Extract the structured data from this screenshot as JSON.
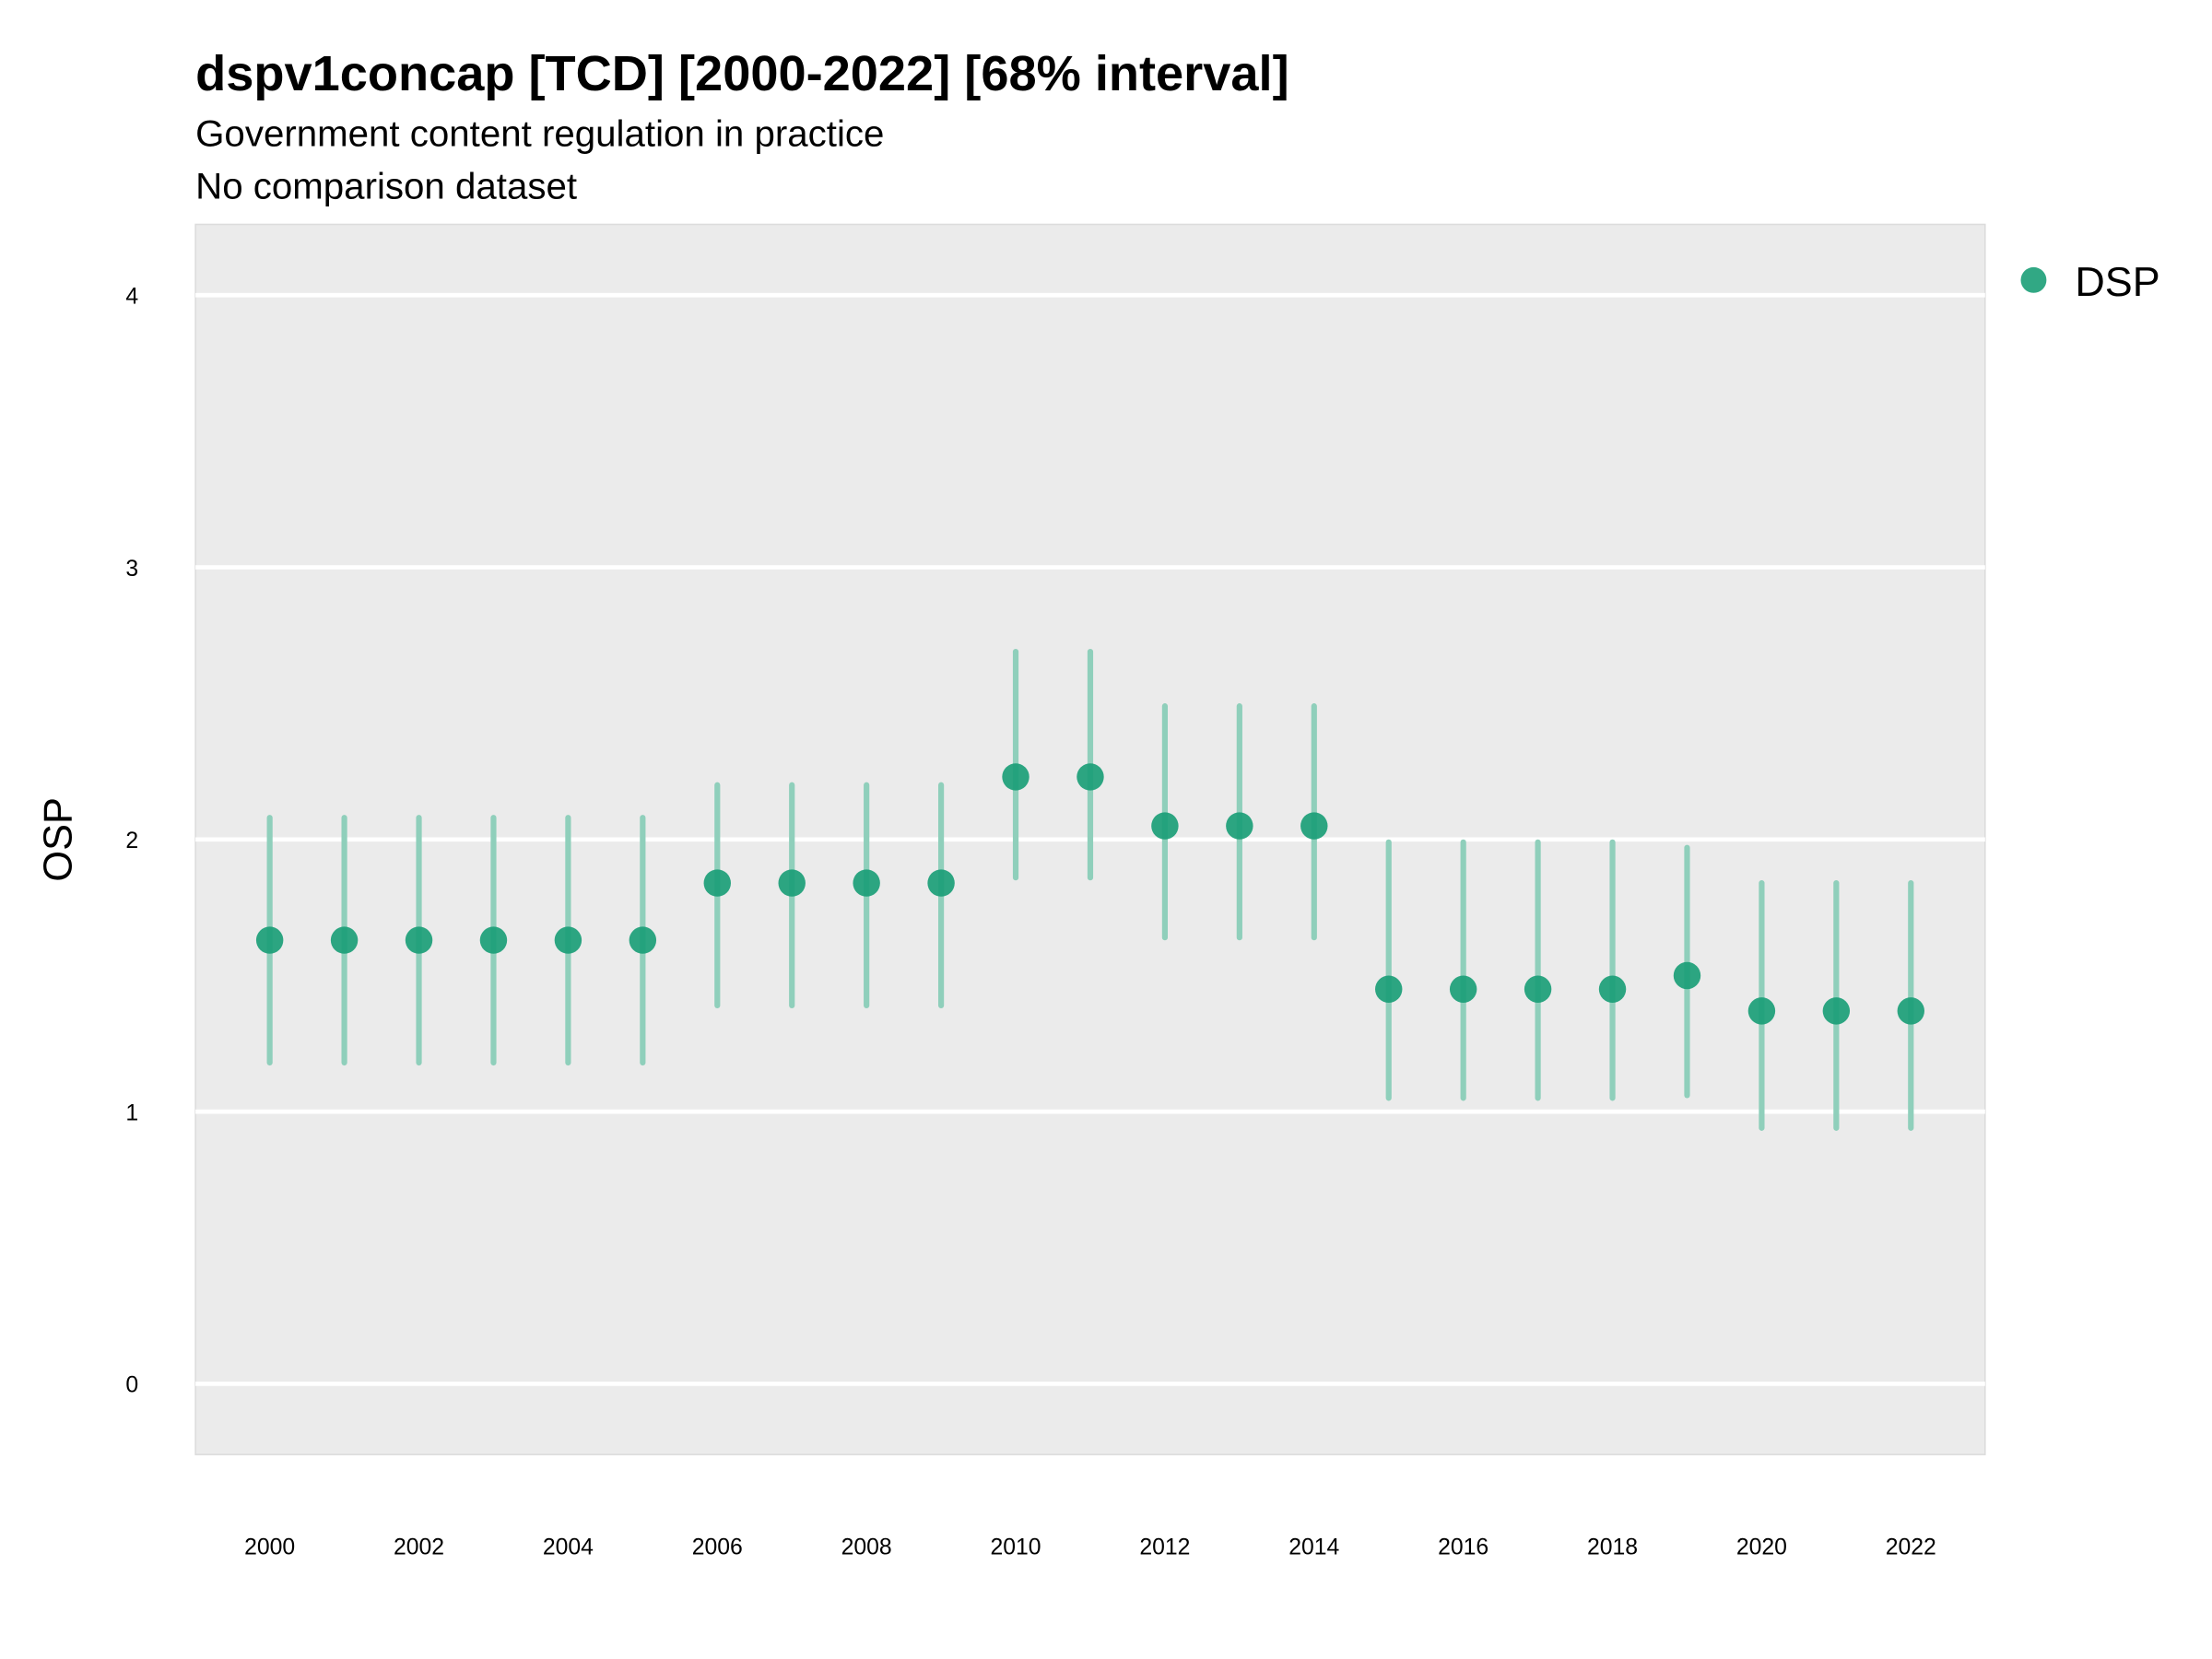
{
  "chart_data": {
    "type": "scatter",
    "title": "dspv1concap [TCD] [2000-2022] [68% interval]",
    "subtitle": "Government content regulation in practice",
    "subtitle2": "No comparison dataset",
    "xlabel": "",
    "ylabel": "OSP",
    "ylim": [
      -0.26,
      4.26
    ],
    "xlim": [
      1999,
      2023
    ],
    "grid": true,
    "legend_position": "right",
    "yticks": [
      "0",
      "1",
      "2",
      "3",
      "4"
    ],
    "xticks": [
      "2000",
      "2002",
      "2004",
      "2006",
      "2008",
      "2010",
      "2012",
      "2014",
      "2016",
      "2018",
      "2020",
      "2022"
    ],
    "colors": {
      "point": "#1b9e77",
      "interval": "#8fcfbb",
      "panel": "#ebebeb",
      "grid": "#ffffff"
    },
    "series": [
      {
        "name": "DSP",
        "x": [
          2000,
          2001,
          2002,
          2003,
          2004,
          2005,
          2006,
          2007,
          2008,
          2009,
          2010,
          2011,
          2012,
          2013,
          2014,
          2015,
          2016,
          2017,
          2018,
          2019,
          2020,
          2021,
          2022
        ],
        "y": [
          1.63,
          1.63,
          1.63,
          1.63,
          1.63,
          1.63,
          1.84,
          1.84,
          1.84,
          1.84,
          2.23,
          2.23,
          2.05,
          2.05,
          2.05,
          1.45,
          1.45,
          1.45,
          1.45,
          1.5,
          1.37,
          1.37,
          1.37
        ],
        "lower": [
          1.18,
          1.18,
          1.18,
          1.18,
          1.18,
          1.18,
          1.39,
          1.39,
          1.39,
          1.39,
          1.86,
          1.86,
          1.64,
          1.64,
          1.64,
          1.05,
          1.05,
          1.05,
          1.05,
          1.06,
          0.94,
          0.94,
          0.94
        ],
        "upper": [
          2.08,
          2.08,
          2.08,
          2.08,
          2.08,
          2.08,
          2.2,
          2.2,
          2.2,
          2.2,
          2.69,
          2.69,
          2.49,
          2.49,
          2.49,
          1.99,
          1.99,
          1.99,
          1.99,
          1.97,
          1.84,
          1.84,
          1.84
        ]
      }
    ]
  }
}
